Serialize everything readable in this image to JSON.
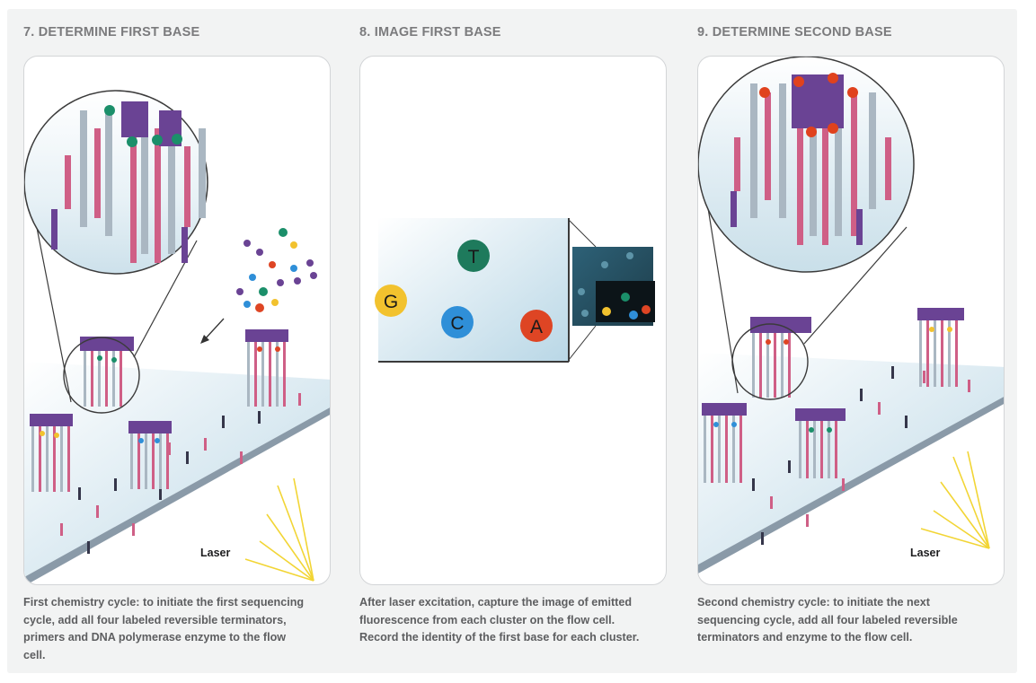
{
  "steps": [
    {
      "title": "7. DETERMINE FIRST BASE",
      "caption": "First chemistry cycle: to initiate the first sequencing cycle, add all four labeled reversible terminators, primers and DNA polymerase enzyme to the flow cell.",
      "laser_label": "Laser"
    },
    {
      "title": "8. IMAGE FIRST BASE",
      "caption": "After laser excitation, capture the image of emitted fluorescence from each cluster on the flow cell. Record the identity of the first base for each cluster.",
      "bases": [
        {
          "letter": "T",
          "color": "#1e7a5c"
        },
        {
          "letter": "G",
          "color": "#f2c22e"
        },
        {
          "letter": "C",
          "color": "#2f8fd8"
        },
        {
          "letter": "A",
          "color": "#de4524"
        }
      ]
    },
    {
      "title": "9. DETERMINE SECOND BASE",
      "caption": "Second chemistry cycle: to initiate the next sequencing cycle, add all four labeled reversible terminators and enzyme to the flow cell.",
      "laser_label": "Laser"
    }
  ],
  "colors": {
    "strand_gray": "#aab7c2",
    "strand_pink": "#cf5f86",
    "strand_purple": "#6a4394",
    "flowcell": "#cfe3ee",
    "laser": "#f2d535",
    "terminator_green": "#1b8f6a",
    "terminator_red": "#e0421d"
  }
}
